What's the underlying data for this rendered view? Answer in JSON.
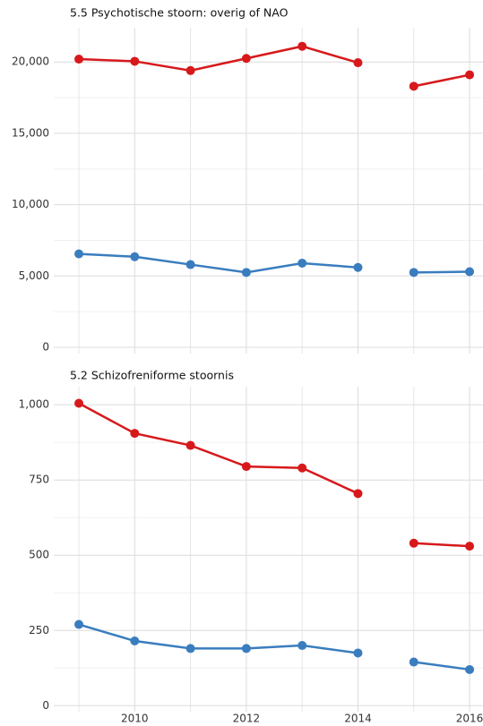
{
  "chart_data": [
    {
      "type": "line",
      "title": "5.5 Psychotische stoorn: overig of NAO",
      "xlim": [
        2008.55,
        2016.24
      ],
      "xticks": [
        2010,
        2012,
        2014,
        2016
      ],
      "x_minor_ticks": [
        2009,
        2011,
        2013,
        2015
      ],
      "ylim": [
        -440,
        22400
      ],
      "yticks": [
        0,
        {
          "value": 5000,
          "label": "5,000"
        },
        {
          "value": 10000,
          "label": "10,000"
        },
        {
          "value": 15000,
          "label": "15,000"
        },
        {
          "value": 20000,
          "label": "20,000"
        }
      ],
      "y_minor_ticks": [
        2500,
        7500,
        12500,
        17500
      ],
      "grid": true,
      "series": [
        {
          "color": "#d7191c",
          "x": [
            2009,
            2010,
            2011,
            2012,
            2013,
            2014
          ],
          "values": [
            20200,
            20050,
            19400,
            20250,
            21100,
            19950
          ]
        },
        {
          "color": "#d7191c",
          "x": [
            2015,
            2016
          ],
          "values": [
            18300,
            19100
          ]
        },
        {
          "color": "#3a7dbf",
          "x": [
            2009,
            2010,
            2011,
            2012,
            2013,
            2014
          ],
          "values": [
            6550,
            6350,
            5800,
            5250,
            5900,
            5600
          ]
        },
        {
          "color": "#3a7dbf",
          "x": [
            2015,
            2016
          ],
          "values": [
            5250,
            5300
          ]
        }
      ]
    },
    {
      "type": "line",
      "title": "5.2 Schizofreniforme stoornis",
      "xlim": [
        2008.55,
        2016.24
      ],
      "xticks": [
        2010,
        2012,
        2014,
        2016
      ],
      "x_minor_ticks": [
        2009,
        2011,
        2013,
        2015
      ],
      "ylim": [
        -20,
        1060
      ],
      "yticks": [
        0,
        250,
        500,
        750,
        {
          "value": 1000,
          "label": "1,000"
        }
      ],
      "y_minor_ticks": [
        125,
        375,
        625,
        875
      ],
      "grid": true,
      "series": [
        {
          "color": "#d7191c",
          "x": [
            2009,
            2010,
            2011,
            2012,
            2013,
            2014
          ],
          "values": [
            1005,
            905,
            865,
            795,
            790,
            705
          ]
        },
        {
          "color": "#d7191c",
          "x": [
            2015,
            2016
          ],
          "values": [
            540,
            530
          ]
        },
        {
          "color": "#3a7dbf",
          "x": [
            2009,
            2010,
            2011,
            2012,
            2013,
            2014
          ],
          "values": [
            270,
            215,
            190,
            190,
            200,
            175
          ]
        },
        {
          "color": "#3a7dbf",
          "x": [
            2015,
            2016
          ],
          "values": [
            145,
            120
          ]
        }
      ]
    }
  ]
}
